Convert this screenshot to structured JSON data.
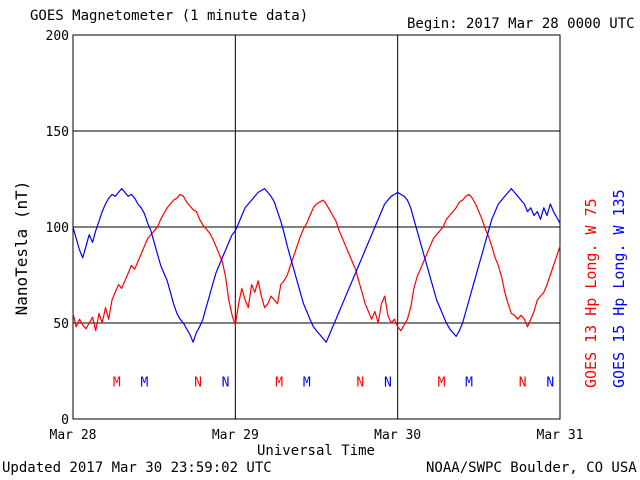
{
  "header": {
    "title": "GOES Magnetometer (1 minute data)",
    "begin": "Begin:  2017 Mar 28 0000 UTC"
  },
  "footer": {
    "updated": "Updated 2017 Mar 30 23:59:02 UTC",
    "credit": "NOAA/SWPC Boulder, CO USA"
  },
  "colors": {
    "goes13": "#ff0000",
    "goes15": "#0000ff",
    "grid": "#000000",
    "bg": "#ffffff"
  },
  "chart_data": {
    "type": "line",
    "title": "GOES Magnetometer (1 minute data)",
    "xlabel": "Universal Time",
    "ylabel": "NanoTesla (nT)",
    "ylim": [
      0,
      200
    ],
    "xlim": [
      0,
      3
    ],
    "x_unit": "days since 2017 Mar 28 0000 UTC",
    "yticks": [
      0,
      50,
      100,
      150,
      200
    ],
    "xticks": [
      {
        "x": 0,
        "label": "Mar 28"
      },
      {
        "x": 1,
        "label": "Mar 29"
      },
      {
        "x": 2,
        "label": "Mar 30"
      },
      {
        "x": 3,
        "label": "Mar 31"
      }
    ],
    "grid": true,
    "legend_placement": "right, rotated",
    "series": [
      {
        "name": "GOES 13 Hp  Long. W 75",
        "color": "#ff0000",
        "points": [
          [
            0.0,
            55
          ],
          [
            0.02,
            48
          ],
          [
            0.04,
            52
          ],
          [
            0.06,
            49
          ],
          [
            0.08,
            47
          ],
          [
            0.1,
            50
          ],
          [
            0.12,
            53
          ],
          [
            0.14,
            46
          ],
          [
            0.16,
            55
          ],
          [
            0.18,
            50
          ],
          [
            0.2,
            58
          ],
          [
            0.22,
            52
          ],
          [
            0.24,
            62
          ],
          [
            0.26,
            66
          ],
          [
            0.28,
            70
          ],
          [
            0.3,
            68
          ],
          [
            0.32,
            72
          ],
          [
            0.34,
            76
          ],
          [
            0.36,
            80
          ],
          [
            0.38,
            78
          ],
          [
            0.4,
            82
          ],
          [
            0.42,
            86
          ],
          [
            0.44,
            90
          ],
          [
            0.46,
            94
          ],
          [
            0.48,
            96
          ],
          [
            0.5,
            98
          ],
          [
            0.52,
            100
          ],
          [
            0.54,
            104
          ],
          [
            0.56,
            107
          ],
          [
            0.58,
            110
          ],
          [
            0.6,
            112
          ],
          [
            0.62,
            114
          ],
          [
            0.64,
            115
          ],
          [
            0.66,
            117
          ],
          [
            0.68,
            116
          ],
          [
            0.7,
            113
          ],
          [
            0.72,
            111
          ],
          [
            0.74,
            109
          ],
          [
            0.76,
            108
          ],
          [
            0.78,
            104
          ],
          [
            0.8,
            101
          ],
          [
            0.82,
            99
          ],
          [
            0.84,
            97
          ],
          [
            0.86,
            94
          ],
          [
            0.88,
            90
          ],
          [
            0.9,
            86
          ],
          [
            0.92,
            82
          ],
          [
            0.94,
            74
          ],
          [
            0.96,
            62
          ],
          [
            0.98,
            54
          ],
          [
            1.0,
            49
          ],
          [
            1.02,
            60
          ],
          [
            1.04,
            68
          ],
          [
            1.06,
            62
          ],
          [
            1.08,
            58
          ],
          [
            1.1,
            70
          ],
          [
            1.12,
            66
          ],
          [
            1.14,
            72
          ],
          [
            1.16,
            64
          ],
          [
            1.18,
            58
          ],
          [
            1.2,
            60
          ],
          [
            1.22,
            64
          ],
          [
            1.24,
            62
          ],
          [
            1.26,
            60
          ],
          [
            1.28,
            70
          ],
          [
            1.3,
            72
          ],
          [
            1.32,
            75
          ],
          [
            1.34,
            80
          ],
          [
            1.36,
            85
          ],
          [
            1.38,
            90
          ],
          [
            1.4,
            95
          ],
          [
            1.42,
            99
          ],
          [
            1.44,
            102
          ],
          [
            1.46,
            106
          ],
          [
            1.48,
            110
          ],
          [
            1.5,
            112
          ],
          [
            1.52,
            113
          ],
          [
            1.54,
            114
          ],
          [
            1.56,
            112
          ],
          [
            1.58,
            109
          ],
          [
            1.6,
            106
          ],
          [
            1.62,
            103
          ],
          [
            1.64,
            98
          ],
          [
            1.66,
            94
          ],
          [
            1.68,
            90
          ],
          [
            1.7,
            86
          ],
          [
            1.72,
            82
          ],
          [
            1.74,
            78
          ],
          [
            1.76,
            72
          ],
          [
            1.78,
            66
          ],
          [
            1.8,
            60
          ],
          [
            1.82,
            56
          ],
          [
            1.84,
            52
          ],
          [
            1.86,
            56
          ],
          [
            1.88,
            50
          ],
          [
            1.9,
            60
          ],
          [
            1.92,
            64
          ],
          [
            1.94,
            54
          ],
          [
            1.96,
            50
          ],
          [
            1.98,
            52
          ],
          [
            2.0,
            48
          ],
          [
            2.02,
            46
          ],
          [
            2.04,
            49
          ],
          [
            2.06,
            52
          ],
          [
            2.08,
            58
          ],
          [
            2.1,
            68
          ],
          [
            2.12,
            74
          ],
          [
            2.14,
            78
          ],
          [
            2.16,
            82
          ],
          [
            2.18,
            86
          ],
          [
            2.2,
            90
          ],
          [
            2.22,
            94
          ],
          [
            2.24,
            96
          ],
          [
            2.26,
            98
          ],
          [
            2.28,
            100
          ],
          [
            2.3,
            104
          ],
          [
            2.32,
            106
          ],
          [
            2.34,
            108
          ],
          [
            2.36,
            110
          ],
          [
            2.38,
            113
          ],
          [
            2.4,
            114
          ],
          [
            2.42,
            116
          ],
          [
            2.44,
            117
          ],
          [
            2.46,
            115
          ],
          [
            2.48,
            112
          ],
          [
            2.5,
            108
          ],
          [
            2.52,
            104
          ],
          [
            2.54,
            99
          ],
          [
            2.56,
            95
          ],
          [
            2.58,
            90
          ],
          [
            2.6,
            84
          ],
          [
            2.62,
            80
          ],
          [
            2.64,
            74
          ],
          [
            2.66,
            66
          ],
          [
            2.68,
            60
          ],
          [
            2.7,
            55
          ],
          [
            2.72,
            54
          ],
          [
            2.74,
            52
          ],
          [
            2.76,
            54
          ],
          [
            2.78,
            52
          ],
          [
            2.8,
            48
          ],
          [
            2.82,
            52
          ],
          [
            2.84,
            56
          ],
          [
            2.86,
            62
          ],
          [
            2.88,
            64
          ],
          [
            2.9,
            66
          ],
          [
            2.92,
            70
          ],
          [
            2.94,
            75
          ],
          [
            2.96,
            80
          ],
          [
            2.98,
            85
          ],
          [
            3.0,
            90
          ]
        ]
      },
      {
        "name": "GOES 15 Hp  Long. W 135",
        "color": "#0000ff",
        "points": [
          [
            0.0,
            100
          ],
          [
            0.02,
            94
          ],
          [
            0.04,
            88
          ],
          [
            0.06,
            84
          ],
          [
            0.08,
            90
          ],
          [
            0.1,
            96
          ],
          [
            0.12,
            92
          ],
          [
            0.14,
            98
          ],
          [
            0.16,
            103
          ],
          [
            0.18,
            108
          ],
          [
            0.2,
            112
          ],
          [
            0.22,
            115
          ],
          [
            0.24,
            117
          ],
          [
            0.26,
            116
          ],
          [
            0.28,
            118
          ],
          [
            0.3,
            120
          ],
          [
            0.32,
            118
          ],
          [
            0.34,
            116
          ],
          [
            0.36,
            117
          ],
          [
            0.38,
            115
          ],
          [
            0.4,
            112
          ],
          [
            0.42,
            110
          ],
          [
            0.44,
            107
          ],
          [
            0.46,
            102
          ],
          [
            0.48,
            98
          ],
          [
            0.5,
            92
          ],
          [
            0.52,
            86
          ],
          [
            0.54,
            80
          ],
          [
            0.56,
            76
          ],
          [
            0.58,
            72
          ],
          [
            0.6,
            66
          ],
          [
            0.62,
            60
          ],
          [
            0.64,
            55
          ],
          [
            0.66,
            52
          ],
          [
            0.68,
            50
          ],
          [
            0.7,
            47
          ],
          [
            0.72,
            44
          ],
          [
            0.74,
            40
          ],
          [
            0.76,
            45
          ],
          [
            0.78,
            48
          ],
          [
            0.8,
            52
          ],
          [
            0.82,
            58
          ],
          [
            0.84,
            64
          ],
          [
            0.86,
            70
          ],
          [
            0.88,
            76
          ],
          [
            0.9,
            80
          ],
          [
            0.92,
            84
          ],
          [
            0.94,
            88
          ],
          [
            0.96,
            92
          ],
          [
            0.98,
            96
          ],
          [
            1.0,
            98
          ],
          [
            1.02,
            102
          ],
          [
            1.04,
            106
          ],
          [
            1.06,
            110
          ],
          [
            1.08,
            112
          ],
          [
            1.1,
            114
          ],
          [
            1.12,
            116
          ],
          [
            1.14,
            118
          ],
          [
            1.16,
            119
          ],
          [
            1.18,
            120
          ],
          [
            1.2,
            118
          ],
          [
            1.22,
            116
          ],
          [
            1.24,
            113
          ],
          [
            1.26,
            108
          ],
          [
            1.28,
            103
          ],
          [
            1.3,
            97
          ],
          [
            1.32,
            90
          ],
          [
            1.34,
            84
          ],
          [
            1.36,
            78
          ],
          [
            1.38,
            72
          ],
          [
            1.4,
            66
          ],
          [
            1.42,
            60
          ],
          [
            1.44,
            56
          ],
          [
            1.46,
            52
          ],
          [
            1.48,
            48
          ],
          [
            1.5,
            46
          ],
          [
            1.52,
            44
          ],
          [
            1.54,
            42
          ],
          [
            1.56,
            40
          ],
          [
            1.58,
            44
          ],
          [
            1.6,
            48
          ],
          [
            1.62,
            52
          ],
          [
            1.64,
            56
          ],
          [
            1.66,
            60
          ],
          [
            1.68,
            64
          ],
          [
            1.7,
            68
          ],
          [
            1.72,
            72
          ],
          [
            1.74,
            76
          ],
          [
            1.76,
            80
          ],
          [
            1.78,
            84
          ],
          [
            1.8,
            88
          ],
          [
            1.82,
            92
          ],
          [
            1.84,
            96
          ],
          [
            1.86,
            100
          ],
          [
            1.88,
            104
          ],
          [
            1.9,
            108
          ],
          [
            1.92,
            112
          ],
          [
            1.94,
            114
          ],
          [
            1.96,
            116
          ],
          [
            1.98,
            117
          ],
          [
            2.0,
            118
          ],
          [
            2.02,
            117
          ],
          [
            2.04,
            116
          ],
          [
            2.06,
            114
          ],
          [
            2.08,
            110
          ],
          [
            2.1,
            104
          ],
          [
            2.12,
            98
          ],
          [
            2.14,
            92
          ],
          [
            2.16,
            86
          ],
          [
            2.18,
            80
          ],
          [
            2.2,
            74
          ],
          [
            2.22,
            68
          ],
          [
            2.24,
            62
          ],
          [
            2.26,
            58
          ],
          [
            2.28,
            54
          ],
          [
            2.3,
            50
          ],
          [
            2.32,
            47
          ],
          [
            2.34,
            45
          ],
          [
            2.36,
            43
          ],
          [
            2.38,
            46
          ],
          [
            2.4,
            50
          ],
          [
            2.42,
            56
          ],
          [
            2.44,
            62
          ],
          [
            2.46,
            68
          ],
          [
            2.48,
            74
          ],
          [
            2.5,
            80
          ],
          [
            2.52,
            86
          ],
          [
            2.54,
            92
          ],
          [
            2.56,
            98
          ],
          [
            2.58,
            104
          ],
          [
            2.6,
            108
          ],
          [
            2.62,
            112
          ],
          [
            2.64,
            114
          ],
          [
            2.66,
            116
          ],
          [
            2.68,
            118
          ],
          [
            2.7,
            120
          ],
          [
            2.72,
            118
          ],
          [
            2.74,
            116
          ],
          [
            2.76,
            114
          ],
          [
            2.78,
            112
          ],
          [
            2.8,
            108
          ],
          [
            2.82,
            110
          ],
          [
            2.84,
            106
          ],
          [
            2.86,
            108
          ],
          [
            2.88,
            104
          ],
          [
            2.9,
            110
          ],
          [
            2.92,
            106
          ],
          [
            2.94,
            112
          ],
          [
            2.96,
            108
          ],
          [
            2.98,
            105
          ],
          [
            3.0,
            102
          ]
        ]
      }
    ],
    "markers": [
      {
        "label": "M",
        "x": 0.27,
        "color": "#ff0000"
      },
      {
        "label": "M",
        "x": 0.44,
        "color": "#0000ff"
      },
      {
        "label": "N",
        "x": 0.77,
        "color": "#ff0000"
      },
      {
        "label": "N",
        "x": 0.94,
        "color": "#0000ff"
      },
      {
        "label": "M",
        "x": 1.27,
        "color": "#ff0000"
      },
      {
        "label": "M",
        "x": 1.44,
        "color": "#0000ff"
      },
      {
        "label": "N",
        "x": 1.77,
        "color": "#ff0000"
      },
      {
        "label": "N",
        "x": 1.94,
        "color": "#0000ff"
      },
      {
        "label": "M",
        "x": 2.27,
        "color": "#ff0000"
      },
      {
        "label": "M",
        "x": 2.44,
        "color": "#0000ff"
      },
      {
        "label": "N",
        "x": 2.77,
        "color": "#ff0000"
      },
      {
        "label": "N",
        "x": 2.94,
        "color": "#0000ff"
      }
    ],
    "marker_y": 17
  }
}
